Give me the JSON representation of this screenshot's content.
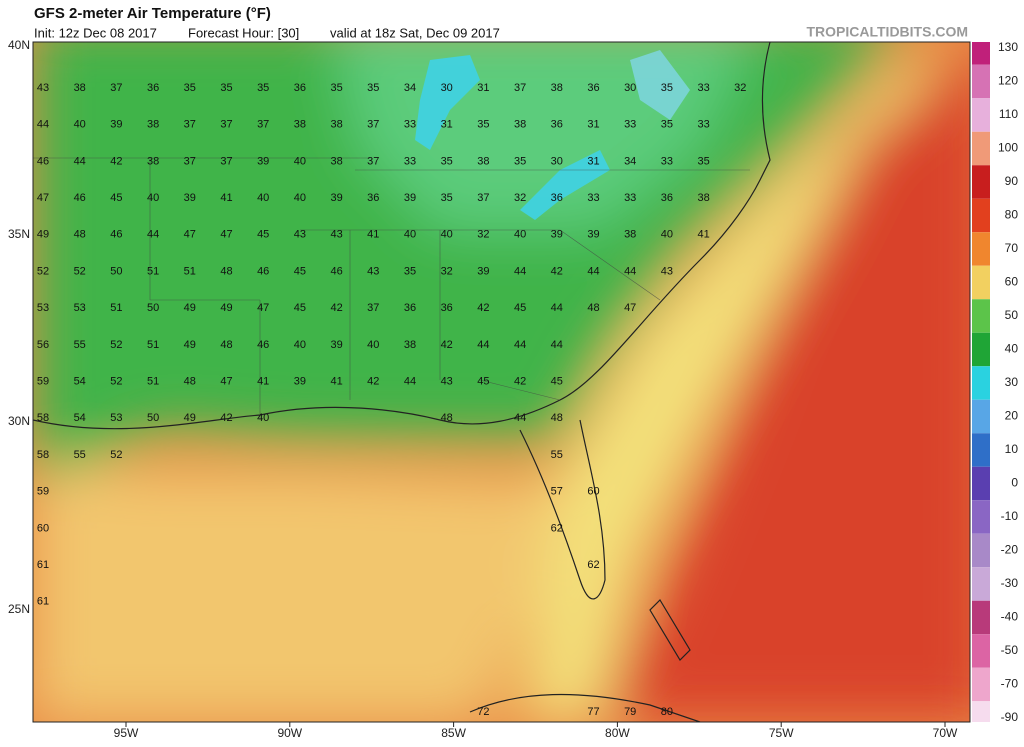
{
  "header": {
    "title": "GFS 2-meter Air Temperature (°F)",
    "init": "Init: 12z Dec 08 2017",
    "forecast_hour": "Forecast Hour: [30]",
    "valid": "valid at 18z Sat, Dec 09 2017",
    "site": "TROPICALTIDBITS.COM"
  },
  "map": {
    "lat_labels": [
      "40N",
      "35N",
      "30N",
      "25N"
    ],
    "lon_labels": [
      "95W",
      "90W",
      "85W",
      "80W",
      "75W",
      "70W"
    ],
    "temperature_grid": [
      [
        43,
        38,
        37,
        36,
        35,
        35,
        35,
        36,
        35,
        35,
        34,
        30,
        31,
        37,
        38,
        36,
        30,
        35,
        33,
        32
      ],
      [
        44,
        40,
        39,
        38,
        37,
        37,
        37,
        38,
        38,
        37,
        33,
        31,
        35,
        38,
        36,
        31,
        33,
        35,
        33
      ],
      [
        46,
        44,
        42,
        38,
        37,
        37,
        39,
        40,
        38,
        37,
        33,
        35,
        38,
        35,
        30,
        31,
        34,
        33,
        35
      ],
      [
        47,
        46,
        45,
        40,
        39,
        41,
        40,
        40,
        39,
        36,
        39,
        35,
        37,
        32,
        36,
        33,
        33,
        36,
        38
      ],
      [
        49,
        48,
        46,
        44,
        47,
        47,
        45,
        43,
        43,
        41,
        40,
        40,
        32,
        40,
        39,
        39,
        38,
        40,
        41
      ],
      [
        52,
        52,
        50,
        51,
        51,
        48,
        46,
        45,
        46,
        43,
        35,
        32,
        39,
        44,
        42,
        44,
        44,
        43
      ],
      [
        53,
        53,
        51,
        50,
        49,
        49,
        47,
        45,
        42,
        37,
        36,
        36,
        42,
        45,
        44,
        48,
        47
      ],
      [
        56,
        55,
        52,
        51,
        49,
        48,
        46,
        40,
        39,
        40,
        38,
        42,
        44,
        44,
        44
      ],
      [
        59,
        54,
        52,
        51,
        48,
        47,
        41,
        39,
        41,
        42,
        44,
        43,
        45,
        42,
        45
      ],
      [
        58,
        54,
        53,
        50,
        49,
        42,
        40,
        null,
        null,
        null,
        null,
        48,
        null,
        44,
        48
      ],
      [
        58,
        55,
        52,
        null,
        null,
        null,
        null,
        null,
        null,
        null,
        null,
        null,
        null,
        null,
        55
      ],
      [
        59,
        null,
        null,
        null,
        null,
        null,
        null,
        null,
        null,
        null,
        null,
        null,
        null,
        null,
        57,
        60
      ],
      [
        60,
        null,
        null,
        null,
        null,
        null,
        null,
        null,
        null,
        null,
        null,
        null,
        null,
        null,
        62
      ],
      [
        61,
        null,
        null,
        null,
        null,
        null,
        null,
        null,
        null,
        null,
        null,
        null,
        null,
        null,
        null,
        62
      ],
      [
        61
      ],
      [],
      [],
      [
        null,
        null,
        null,
        null,
        null,
        null,
        null,
        null,
        null,
        null,
        null,
        null,
        72,
        null,
        null,
        77,
        79,
        80
      ]
    ]
  },
  "colorbar": {
    "ticks": [
      130,
      120,
      110,
      100,
      90,
      80,
      70,
      60,
      50,
      40,
      30,
      20,
      10,
      0,
      -10,
      -20,
      -30,
      -40,
      -50,
      -70,
      -90
    ],
    "colors": [
      "#c0207a",
      "#d672b4",
      "#e7b0dc",
      "#f09a78",
      "#c81e1e",
      "#e2401e",
      "#f0862e",
      "#f2d060",
      "#5cc44a",
      "#1fa536",
      "#2ad2e0",
      "#58a6e6",
      "#2f6fc8",
      "#5a3fb0",
      "#8a66c4",
      "#a889c8",
      "#c9a9d8",
      "#b83a7a",
      "#dc64a4",
      "#eea6cc",
      "#f6dcee"
    ]
  }
}
